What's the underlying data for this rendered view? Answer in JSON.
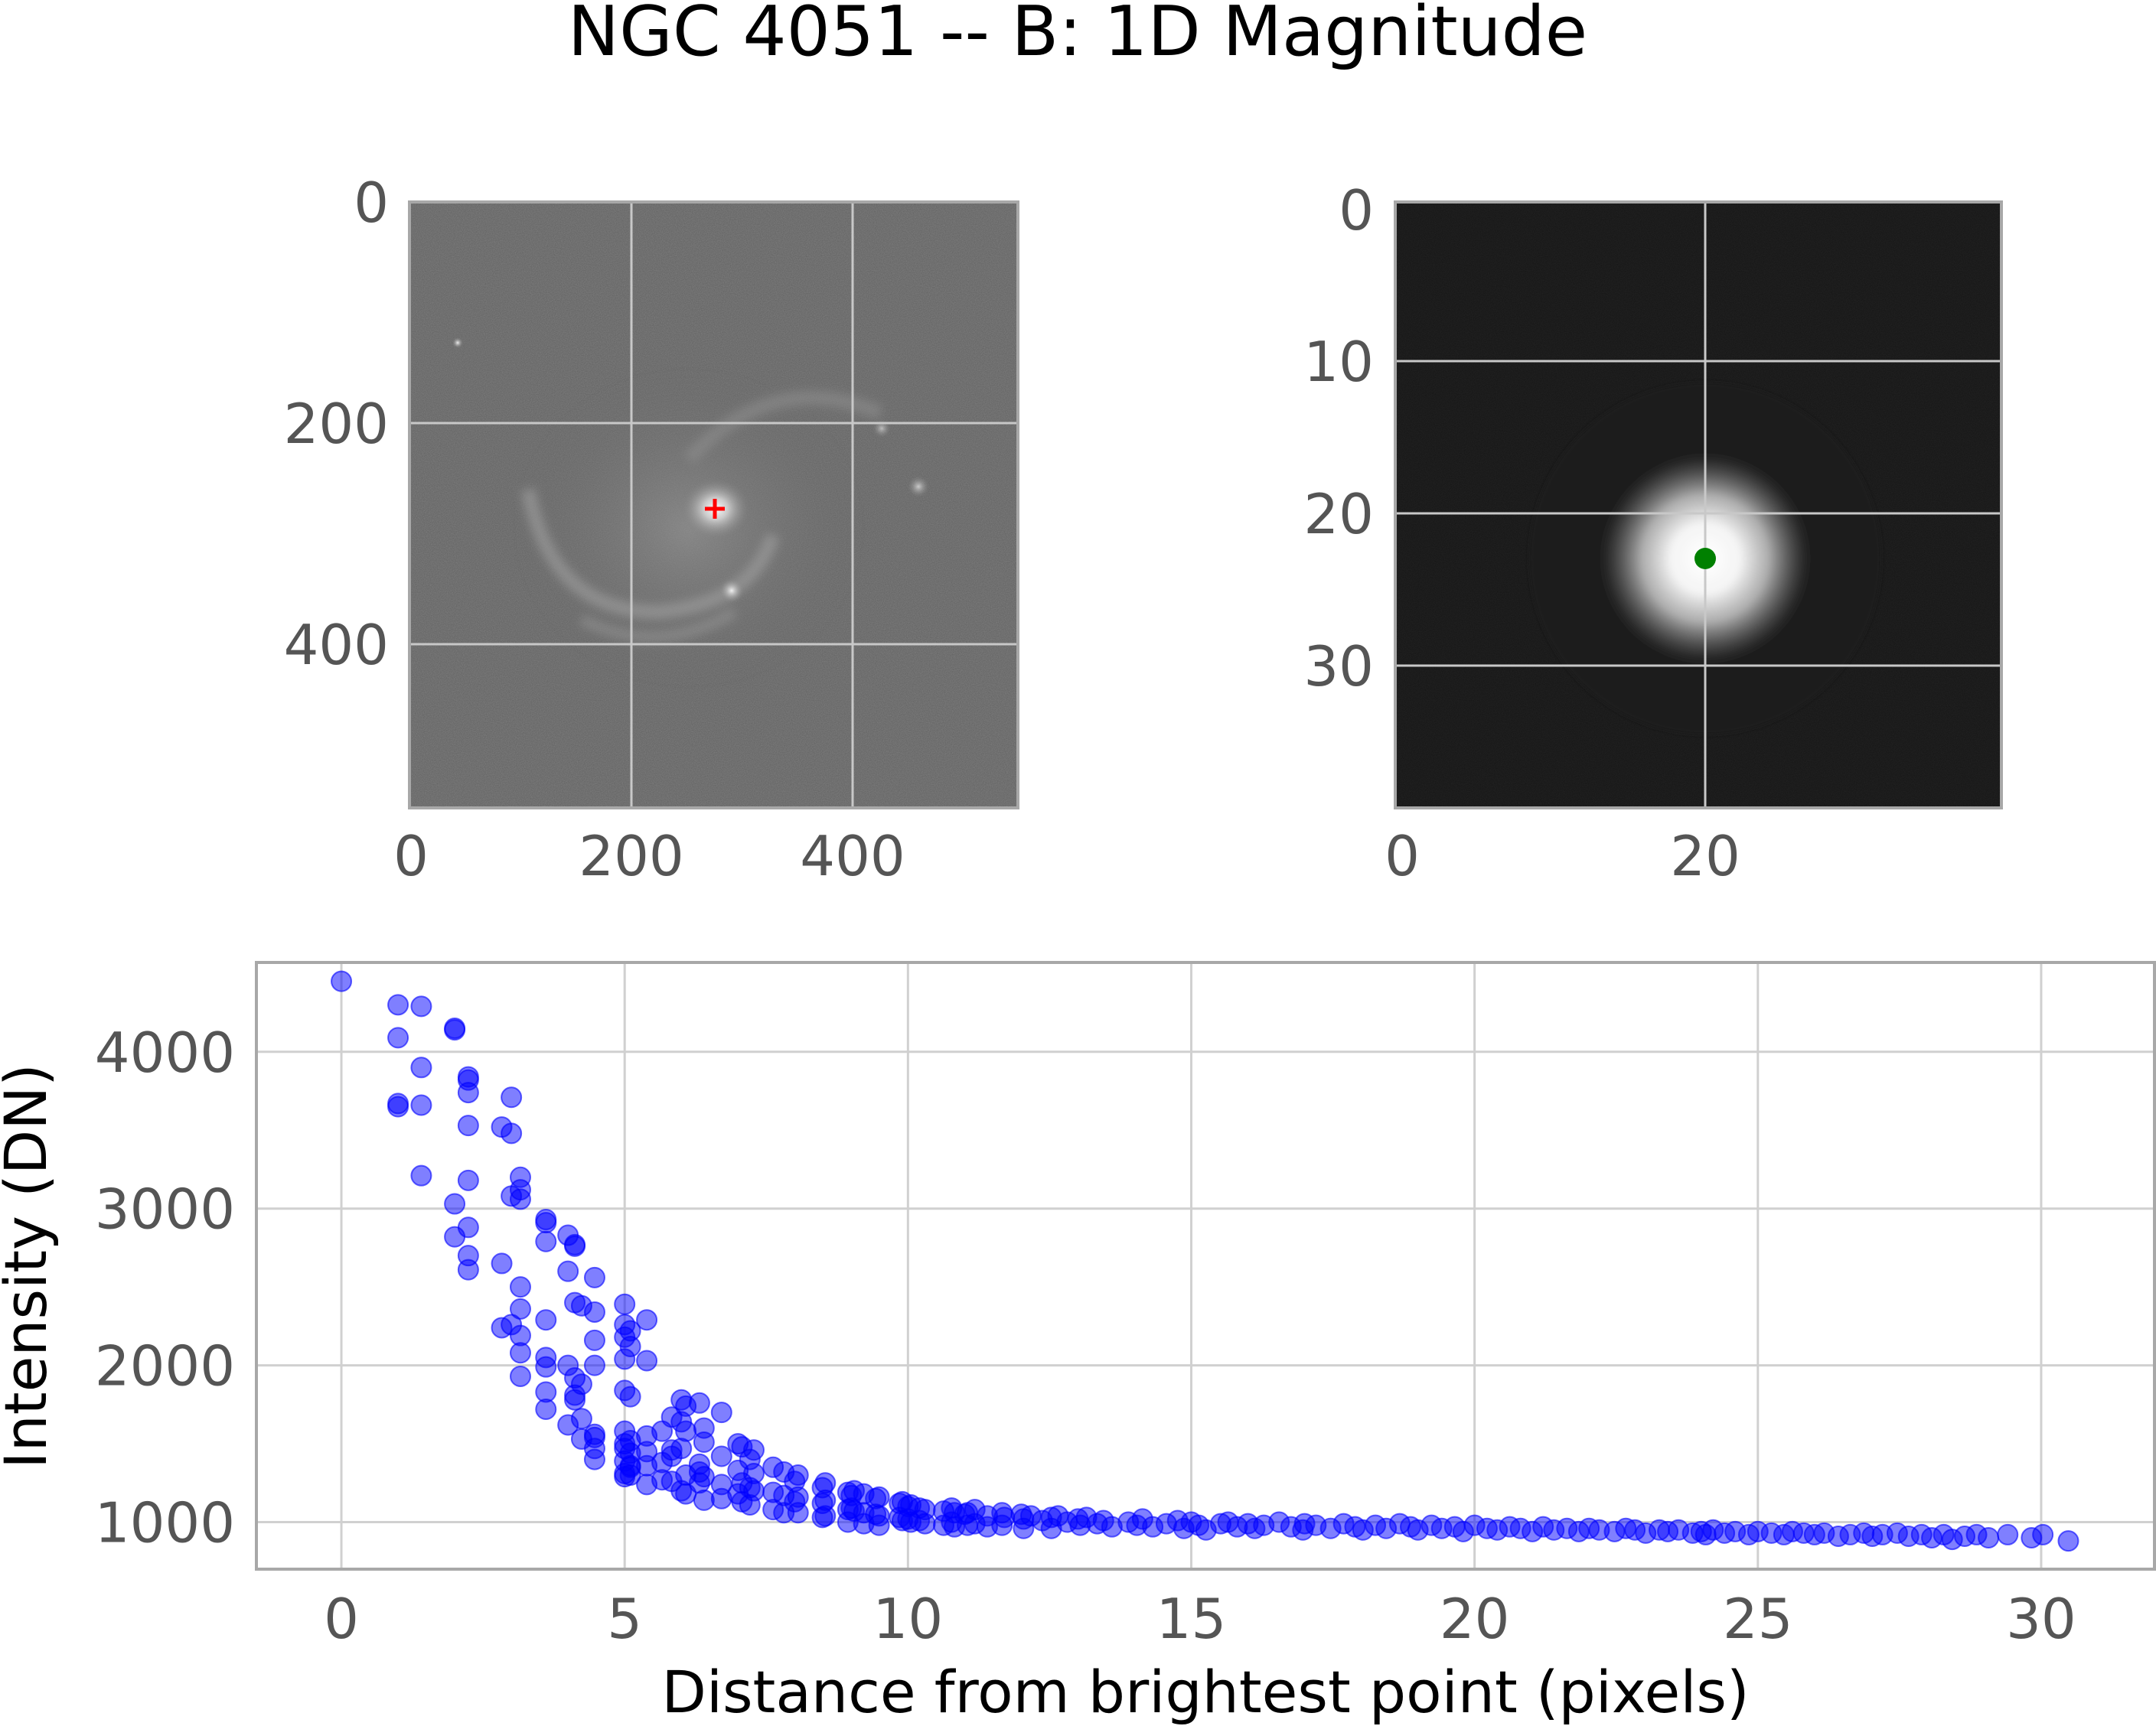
{
  "figure": {
    "title": "NGC 4051 -- B: 1D Magnitude"
  },
  "chart_data": [
    {
      "type": "image",
      "panel": "full-frame",
      "colormap": "gray",
      "x_ticks": [
        "0",
        "200",
        "400"
      ],
      "y_ticks": [
        "0",
        "200",
        "400"
      ],
      "xlim": [
        0,
        550
      ],
      "ylim": [
        550,
        0
      ],
      "marker": {
        "type": "plus",
        "color": "#ff0000",
        "x": 275,
        "y": 277
      },
      "grid": true
    },
    {
      "type": "image",
      "panel": "cutout",
      "colormap": "gray",
      "x_ticks": [
        "0",
        "20"
      ],
      "y_ticks": [
        "0",
        "10",
        "20",
        "30"
      ],
      "xlim": [
        0,
        39
      ],
      "ylim": [
        39,
        0
      ],
      "marker": {
        "type": "dot",
        "color": "#008000",
        "x": 20,
        "y": 23
      },
      "grid": true
    },
    {
      "type": "scatter",
      "panel": "radial-profile",
      "xlabel": "Distance from brightest point (pixels)",
      "ylabel": "Intensity (DN)",
      "x_ticks": [
        "0",
        "5",
        "10",
        "15",
        "20",
        "25",
        "30"
      ],
      "y_ticks": [
        "1000",
        "2000",
        "3000",
        "4000"
      ],
      "xlim": [
        -1.5,
        32.0
      ],
      "ylim": [
        700,
        4570
      ],
      "point_color": "#0000ff",
      "point_alpha": 0.5,
      "grid": true,
      "points": [
        [
          0.0,
          4450
        ],
        [
          1.0,
          4300
        ],
        [
          1.0,
          4090
        ],
        [
          1.0,
          3670
        ],
        [
          1.0,
          3650
        ],
        [
          1.41,
          4290
        ],
        [
          1.41,
          3900
        ],
        [
          1.41,
          3660
        ],
        [
          1.41,
          3210
        ],
        [
          2.0,
          4150
        ],
        [
          2.0,
          4140
        ],
        [
          2.0,
          3030
        ],
        [
          2.0,
          2820
        ],
        [
          2.24,
          3840
        ],
        [
          2.24,
          3820
        ],
        [
          2.24,
          3740
        ],
        [
          2.24,
          3530
        ],
        [
          2.24,
          3180
        ],
        [
          2.24,
          2880
        ],
        [
          2.24,
          2700
        ],
        [
          2.24,
          2610
        ],
        [
          2.83,
          3520
        ],
        [
          2.83,
          2650
        ],
        [
          2.83,
          2240
        ],
        [
          3.0,
          3710
        ],
        [
          3.0,
          3480
        ],
        [
          3.0,
          3080
        ],
        [
          3.0,
          2260
        ],
        [
          3.16,
          3200
        ],
        [
          3.16,
          3120
        ],
        [
          3.16,
          3060
        ],
        [
          3.16,
          2500
        ],
        [
          3.16,
          2360
        ],
        [
          3.16,
          2190
        ],
        [
          3.16,
          2080
        ],
        [
          3.16,
          1930
        ],
        [
          3.61,
          2930
        ],
        [
          3.61,
          2910
        ],
        [
          3.61,
          2790
        ],
        [
          3.61,
          2290
        ],
        [
          3.61,
          2050
        ],
        [
          3.61,
          1990
        ],
        [
          3.61,
          1830
        ],
        [
          3.61,
          1720
        ],
        [
          4.0,
          2830
        ],
        [
          4.0,
          2600
        ],
        [
          4.0,
          2000
        ],
        [
          4.0,
          1620
        ],
        [
          4.12,
          2770
        ],
        [
          4.12,
          2760
        ],
        [
          4.12,
          2400
        ],
        [
          4.12,
          1920
        ],
        [
          4.12,
          1810
        ],
        [
          4.12,
          1780
        ],
        [
          4.24,
          2380
        ],
        [
          4.24,
          1880
        ],
        [
          4.24,
          1660
        ],
        [
          4.24,
          1530
        ],
        [
          4.47,
          2560
        ],
        [
          4.47,
          2340
        ],
        [
          4.47,
          2160
        ],
        [
          4.47,
          2000
        ],
        [
          4.47,
          1560
        ],
        [
          4.47,
          1540
        ],
        [
          4.47,
          1470
        ],
        [
          4.47,
          1400
        ],
        [
          5.0,
          2390
        ],
        [
          5.0,
          2260
        ],
        [
          5.0,
          2180
        ],
        [
          5.0,
          2040
        ],
        [
          5.0,
          1840
        ],
        [
          5.0,
          1580
        ],
        [
          5.0,
          1500
        ],
        [
          5.0,
          1470
        ],
        [
          5.0,
          1390
        ],
        [
          5.0,
          1310
        ],
        [
          5.0,
          1290
        ],
        [
          5.1,
          2220
        ],
        [
          5.1,
          2120
        ],
        [
          5.1,
          1800
        ],
        [
          5.1,
          1520
        ],
        [
          5.1,
          1440
        ],
        [
          5.1,
          1360
        ],
        [
          5.1,
          1350
        ],
        [
          5.1,
          1300
        ],
        [
          5.39,
          2290
        ],
        [
          5.39,
          2030
        ],
        [
          5.39,
          1550
        ],
        [
          5.39,
          1450
        ],
        [
          5.39,
          1360
        ],
        [
          5.39,
          1240
        ],
        [
          5.66,
          1580
        ],
        [
          5.66,
          1380
        ],
        [
          5.66,
          1270
        ],
        [
          5.83,
          1670
        ],
        [
          5.83,
          1460
        ],
        [
          5.83,
          1420
        ],
        [
          5.83,
          1260
        ],
        [
          6.0,
          1780
        ],
        [
          6.0,
          1640
        ],
        [
          6.0,
          1470
        ],
        [
          6.0,
          1200
        ],
        [
          6.08,
          1740
        ],
        [
          6.08,
          1580
        ],
        [
          6.08,
          1300
        ],
        [
          6.08,
          1180
        ],
        [
          6.32,
          1760
        ],
        [
          6.32,
          1370
        ],
        [
          6.32,
          1320
        ],
        [
          6.32,
          1250
        ],
        [
          6.4,
          1600
        ],
        [
          6.4,
          1510
        ],
        [
          6.4,
          1290
        ],
        [
          6.4,
          1140
        ],
        [
          6.71,
          1700
        ],
        [
          6.71,
          1420
        ],
        [
          6.71,
          1240
        ],
        [
          6.71,
          1150
        ],
        [
          7.0,
          1500
        ],
        [
          7.0,
          1330
        ],
        [
          7.0,
          1180
        ],
        [
          7.07,
          1480
        ],
        [
          7.07,
          1250
        ],
        [
          7.07,
          1130
        ],
        [
          7.21,
          1400
        ],
        [
          7.21,
          1220
        ],
        [
          7.21,
          1110
        ],
        [
          7.28,
          1460
        ],
        [
          7.28,
          1310
        ],
        [
          7.28,
          1200
        ],
        [
          7.62,
          1350
        ],
        [
          7.62,
          1190
        ],
        [
          7.62,
          1080
        ],
        [
          7.81,
          1320
        ],
        [
          7.81,
          1170
        ],
        [
          7.81,
          1060
        ],
        [
          8.0,
          1260
        ],
        [
          8.0,
          1130
        ],
        [
          8.06,
          1300
        ],
        [
          8.06,
          1160
        ],
        [
          8.06,
          1060
        ],
        [
          8.49,
          1220
        ],
        [
          8.49,
          1120
        ],
        [
          8.49,
          1030
        ],
        [
          8.54,
          1250
        ],
        [
          8.54,
          1140
        ],
        [
          8.54,
          1040
        ],
        [
          8.94,
          1190
        ],
        [
          8.94,
          1080
        ],
        [
          8.94,
          1000
        ],
        [
          9.0,
          1170
        ],
        [
          9.0,
          1090
        ],
        [
          9.05,
          1200
        ],
        [
          9.05,
          1070
        ],
        [
          9.22,
          1180
        ],
        [
          9.22,
          1060
        ],
        [
          9.22,
          990
        ],
        [
          9.43,
          1150
        ],
        [
          9.43,
          1050
        ],
        [
          9.49,
          1160
        ],
        [
          9.49,
          1040
        ],
        [
          9.49,
          980
        ],
        [
          9.85,
          1120
        ],
        [
          9.85,
          1030
        ],
        [
          9.9,
          1130
        ],
        [
          9.9,
          1010
        ],
        [
          10.0,
          1100
        ],
        [
          10.0,
          1020
        ],
        [
          10.05,
          1110
        ],
        [
          10.05,
          1000
        ],
        [
          10.2,
          1090
        ],
        [
          10.2,
          1010
        ],
        [
          10.3,
          1080
        ],
        [
          10.3,
          990
        ],
        [
          10.63,
          1070
        ],
        [
          10.63,
          980
        ],
        [
          10.77,
          1090
        ],
        [
          10.77,
          1000
        ],
        [
          10.82,
          1060
        ],
        [
          10.82,
          970
        ],
        [
          11.0,
          1050
        ],
        [
          11.05,
          1060
        ],
        [
          11.05,
          980
        ],
        [
          11.18,
          1080
        ],
        [
          11.18,
          990
        ],
        [
          11.4,
          1040
        ],
        [
          11.4,
          970
        ],
        [
          11.66,
          1060
        ],
        [
          11.66,
          980
        ],
        [
          11.7,
          1030
        ],
        [
          12.0,
          1050
        ],
        [
          12.04,
          1020
        ],
        [
          12.04,
          960
        ],
        [
          12.17,
          1040
        ],
        [
          12.37,
          1010
        ],
        [
          12.53,
          1030
        ],
        [
          12.53,
          960
        ],
        [
          12.65,
          1040
        ],
        [
          12.81,
          1000
        ],
        [
          13.0,
          1020
        ],
        [
          13.04,
          980
        ],
        [
          13.15,
          1030
        ],
        [
          13.34,
          990
        ],
        [
          13.45,
          1010
        ],
        [
          13.6,
          970
        ],
        [
          13.89,
          1000
        ],
        [
          14.04,
          980
        ],
        [
          14.14,
          1020
        ],
        [
          14.32,
          970
        ],
        [
          14.56,
          990
        ],
        [
          14.76,
          1010
        ],
        [
          14.87,
          960
        ],
        [
          15.0,
          1000
        ],
        [
          15.13,
          980
        ],
        [
          15.26,
          950
        ],
        [
          15.52,
          990
        ],
        [
          15.65,
          1000
        ],
        [
          15.81,
          970
        ],
        [
          16.0,
          990
        ],
        [
          16.12,
          960
        ],
        [
          16.28,
          980
        ],
        [
          16.55,
          1000
        ],
        [
          16.76,
          970
        ],
        [
          16.97,
          950
        ],
        [
          17.0,
          990
        ],
        [
          17.2,
          980
        ],
        [
          17.46,
          960
        ],
        [
          17.69,
          990
        ],
        [
          17.89,
          970
        ],
        [
          18.03,
          950
        ],
        [
          18.25,
          980
        ],
        [
          18.44,
          960
        ],
        [
          18.68,
          990
        ],
        [
          18.87,
          970
        ],
        [
          19.0,
          950
        ],
        [
          19.24,
          980
        ],
        [
          19.42,
          960
        ],
        [
          19.65,
          970
        ],
        [
          19.8,
          940
        ],
        [
          20.0,
          980
        ],
        [
          20.22,
          960
        ],
        [
          20.4,
          950
        ],
        [
          20.62,
          970
        ],
        [
          20.81,
          960
        ],
        [
          21.02,
          940
        ],
        [
          21.21,
          970
        ],
        [
          21.4,
          950
        ],
        [
          21.63,
          960
        ],
        [
          21.84,
          940
        ],
        [
          22.02,
          960
        ],
        [
          22.2,
          950
        ],
        [
          22.47,
          940
        ],
        [
          22.67,
          960
        ],
        [
          22.83,
          950
        ],
        [
          23.02,
          930
        ],
        [
          23.26,
          950
        ],
        [
          23.41,
          940
        ],
        [
          23.6,
          950
        ],
        [
          23.85,
          930
        ],
        [
          24.0,
          940
        ],
        [
          24.08,
          920
        ],
        [
          24.21,
          950
        ],
        [
          24.41,
          930
        ],
        [
          24.6,
          940
        ],
        [
          24.84,
          920
        ],
        [
          25.0,
          940
        ],
        [
          25.24,
          930
        ],
        [
          25.46,
          920
        ],
        [
          25.61,
          940
        ],
        [
          25.81,
          930
        ],
        [
          26.0,
          920
        ],
        [
          26.17,
          930
        ],
        [
          26.42,
          910
        ],
        [
          26.63,
          920
        ],
        [
          26.87,
          930
        ],
        [
          27.02,
          910
        ],
        [
          27.2,
          920
        ],
        [
          27.46,
          930
        ],
        [
          27.66,
          910
        ],
        [
          27.89,
          920
        ],
        [
          28.07,
          900
        ],
        [
          28.28,
          920
        ],
        [
          28.43,
          890
        ],
        [
          28.65,
          910
        ],
        [
          28.86,
          920
        ],
        [
          29.07,
          900
        ],
        [
          29.41,
          920
        ],
        [
          29.83,
          900
        ],
        [
          30.03,
          920
        ],
        [
          30.48,
          880
        ]
      ]
    }
  ]
}
